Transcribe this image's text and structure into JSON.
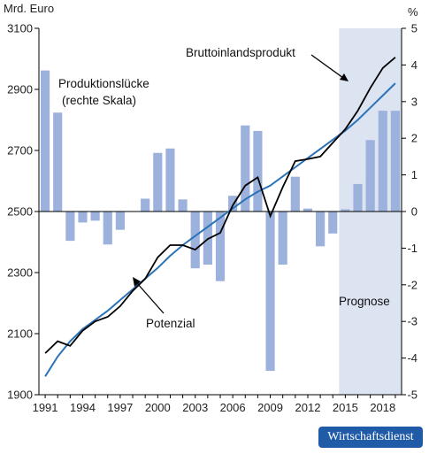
{
  "chart_data": {
    "type": "bar+line",
    "left_axis_unit": "Mrd. Euro",
    "right_axis_unit": "%",
    "ylim_left": [
      1900,
      3100
    ],
    "ylim_right": [
      -5,
      5
    ],
    "yticks_left": [
      "1900",
      "2100",
      "2300",
      "2500",
      "2700",
      "2900",
      "3100"
    ],
    "yticks_right": [
      "-5",
      "-4",
      "-3",
      "-2",
      "-1",
      "0",
      "1",
      "2",
      "3",
      "4",
      "5"
    ],
    "xlim": [
      1990.5,
      2019.5
    ],
    "xtick_labels": [
      "1991",
      "1994",
      "1997",
      "2000",
      "2003",
      "2006",
      "2009",
      "2012",
      "2015",
      "2018"
    ],
    "forecast_region": {
      "from": 2015,
      "to": 2019,
      "label": "Prognose"
    },
    "years": [
      1991,
      1992,
      1993,
      1994,
      1995,
      1996,
      1997,
      1998,
      1999,
      2000,
      2001,
      2002,
      2003,
      2004,
      2005,
      2006,
      2007,
      2008,
      2009,
      2010,
      2011,
      2012,
      2013,
      2014,
      2015,
      2016,
      2017,
      2018,
      2019
    ],
    "series": [
      {
        "name": "Produktionslücke",
        "axis": "right",
        "kind": "bar",
        "values": [
          3.85,
          2.7,
          -0.8,
          -0.3,
          -0.25,
          -0.9,
          -0.5,
          0.0,
          0.35,
          1.6,
          1.72,
          0.33,
          -1.55,
          -1.45,
          -1.9,
          0.43,
          2.35,
          2.2,
          -4.35,
          -1.45,
          0.95,
          0.08,
          -0.95,
          -0.6,
          0.06,
          0.75,
          1.95,
          2.75,
          2.75
        ]
      },
      {
        "name": "Bruttoinlandsprodukt",
        "axis": "left",
        "kind": "line",
        "values": [
          2036,
          2075,
          2060,
          2110,
          2140,
          2155,
          2190,
          2240,
          2280,
          2350,
          2390,
          2390,
          2375,
          2410,
          2430,
          2520,
          2585,
          2612,
          2485,
          2580,
          2665,
          2672,
          2680,
          2725,
          2770,
          2830,
          2905,
          2970,
          3005
        ]
      },
      {
        "name": "Potenzial",
        "axis": "left",
        "kind": "line",
        "values": [
          1960,
          2025,
          2075,
          2115,
          2145,
          2175,
          2210,
          2245,
          2280,
          2315,
          2355,
          2390,
          2420,
          2450,
          2480,
          2510,
          2540,
          2565,
          2585,
          2615,
          2645,
          2675,
          2705,
          2735,
          2765,
          2800,
          2840,
          2880,
          2920
        ]
      }
    ],
    "annotations": {
      "gap_label_line1": "Produktionslücke",
      "gap_label_line2": "(rechte Skala)",
      "gdp_label": "Bruttoinlandsprodukt",
      "potential_label": "Potenzial"
    },
    "colors": {
      "bars": "#9cb2dc",
      "gdp": "#000000",
      "potential": "#2a73b8",
      "forecast_shade": "#dce3f1",
      "zero_line": "#000000"
    }
  },
  "source_badge": "Wirtschaftsdienst"
}
